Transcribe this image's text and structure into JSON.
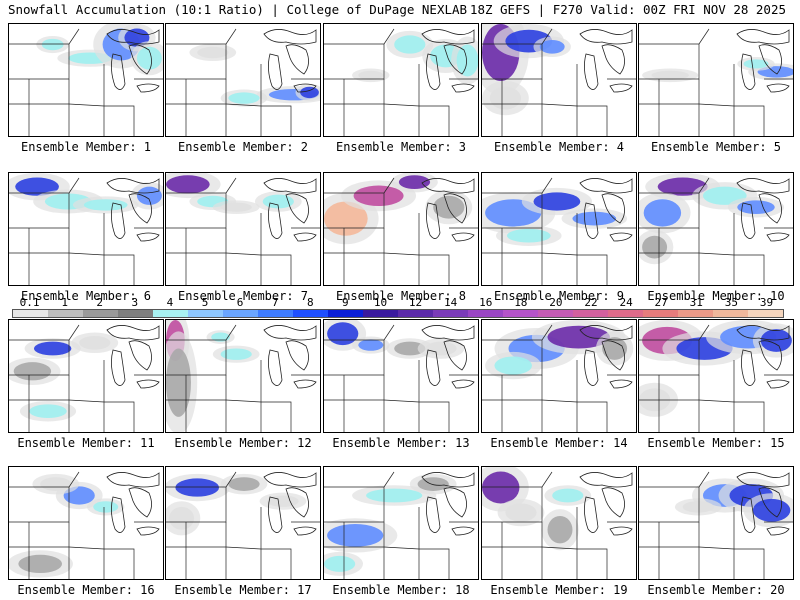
{
  "header": {
    "left": "Snowfall Accumulation (10:1 Ratio) | College of DuPage NEXLAB",
    "right": "18Z GEFS | F270 Valid: 00Z FRI NOV 28 2025"
  },
  "panels": [
    {
      "label": "Ensemble Member: 1",
      "blobs": [
        [
          0.28,
          0.18,
          0.07,
          0.05,
          3
        ],
        [
          0.52,
          0.3,
          0.14,
          0.05,
          3
        ],
        [
          0.72,
          0.18,
          0.12,
          0.14,
          4
        ],
        [
          0.82,
          0.12,
          0.08,
          0.08,
          5
        ],
        [
          0.9,
          0.3,
          0.08,
          0.1,
          3
        ]
      ]
    },
    {
      "label": "Ensemble Member: 2",
      "blobs": [
        [
          0.82,
          0.62,
          0.16,
          0.05,
          4
        ],
        [
          0.5,
          0.65,
          0.1,
          0.05,
          3
        ],
        [
          0.92,
          0.6,
          0.06,
          0.05,
          5
        ],
        [
          0.3,
          0.25,
          0.1,
          0.05,
          1
        ]
      ]
    },
    {
      "label": "Ensemble Member: 3",
      "blobs": [
        [
          0.55,
          0.18,
          0.1,
          0.08,
          3
        ],
        [
          0.78,
          0.28,
          0.1,
          0.1,
          3
        ],
        [
          0.92,
          0.32,
          0.07,
          0.14,
          3
        ],
        [
          0.3,
          0.45,
          0.08,
          0.04,
          1
        ]
      ]
    },
    {
      "label": "Ensemble Member: 4",
      "blobs": [
        [
          0.12,
          0.25,
          0.12,
          0.25,
          6
        ],
        [
          0.3,
          0.15,
          0.15,
          0.1,
          5
        ],
        [
          0.45,
          0.2,
          0.08,
          0.06,
          4
        ],
        [
          0.15,
          0.65,
          0.1,
          0.1,
          1
        ]
      ]
    },
    {
      "label": "Ensemble Member: 5",
      "blobs": [
        [
          0.88,
          0.42,
          0.12,
          0.05,
          4
        ],
        [
          0.75,
          0.35,
          0.08,
          0.04,
          3
        ],
        [
          0.2,
          0.45,
          0.12,
          0.04,
          1
        ]
      ]
    },
    {
      "label": "Ensemble Member: 6",
      "blobs": [
        [
          0.18,
          0.12,
          0.14,
          0.08,
          5
        ],
        [
          0.38,
          0.25,
          0.15,
          0.07,
          3
        ],
        [
          0.62,
          0.28,
          0.14,
          0.05,
          3
        ],
        [
          0.9,
          0.2,
          0.08,
          0.08,
          4
        ]
      ]
    },
    {
      "label": "Ensemble Member: 7",
      "blobs": [
        [
          0.14,
          0.1,
          0.14,
          0.08,
          6
        ],
        [
          0.3,
          0.25,
          0.1,
          0.05,
          3
        ],
        [
          0.72,
          0.25,
          0.1,
          0.06,
          3
        ],
        [
          0.45,
          0.3,
          0.1,
          0.04,
          1
        ]
      ]
    },
    {
      "label": "Ensemble Member: 8",
      "blobs": [
        [
          0.14,
          0.4,
          0.14,
          0.15,
          9
        ],
        [
          0.35,
          0.2,
          0.16,
          0.09,
          7
        ],
        [
          0.58,
          0.08,
          0.1,
          0.06,
          6
        ],
        [
          0.8,
          0.3,
          0.1,
          0.1,
          2
        ]
      ]
    },
    {
      "label": "Ensemble Member: 9",
      "blobs": [
        [
          0.2,
          0.35,
          0.18,
          0.12,
          4
        ],
        [
          0.48,
          0.25,
          0.15,
          0.08,
          5
        ],
        [
          0.72,
          0.4,
          0.14,
          0.06,
          4
        ],
        [
          0.3,
          0.55,
          0.14,
          0.06,
          3
        ]
      ]
    },
    {
      "label": "Ensemble Member: 10",
      "blobs": [
        [
          0.28,
          0.12,
          0.16,
          0.08,
          6
        ],
        [
          0.15,
          0.35,
          0.12,
          0.12,
          4
        ],
        [
          0.55,
          0.2,
          0.14,
          0.08,
          3
        ],
        [
          0.75,
          0.3,
          0.12,
          0.06,
          4
        ],
        [
          0.1,
          0.65,
          0.08,
          0.1,
          2
        ]
      ]
    },
    {
      "label": "Ensemble Member: 11",
      "blobs": [
        [
          0.28,
          0.25,
          0.12,
          0.06,
          5
        ],
        [
          0.15,
          0.45,
          0.12,
          0.08,
          2
        ],
        [
          0.25,
          0.8,
          0.12,
          0.06,
          3
        ],
        [
          0.55,
          0.2,
          0.1,
          0.06,
          1
        ]
      ]
    },
    {
      "label": "Ensemble Member: 12",
      "blobs": [
        [
          0.06,
          0.18,
          0.06,
          0.18,
          7
        ],
        [
          0.08,
          0.55,
          0.08,
          0.3,
          2
        ],
        [
          0.45,
          0.3,
          0.1,
          0.05,
          3
        ],
        [
          0.35,
          0.15,
          0.06,
          0.04,
          3
        ]
      ]
    },
    {
      "label": "Ensemble Member: 13",
      "blobs": [
        [
          0.12,
          0.12,
          0.1,
          0.1,
          5
        ],
        [
          0.3,
          0.22,
          0.08,
          0.05,
          4
        ],
        [
          0.55,
          0.25,
          0.1,
          0.06,
          2
        ],
        [
          0.75,
          0.25,
          0.1,
          0.06,
          1
        ]
      ]
    },
    {
      "label": "Ensemble Member: 14",
      "blobs": [
        [
          0.35,
          0.25,
          0.18,
          0.12,
          4
        ],
        [
          0.62,
          0.15,
          0.2,
          0.1,
          6
        ],
        [
          0.2,
          0.4,
          0.12,
          0.08,
          3
        ],
        [
          0.85,
          0.25,
          0.08,
          0.1,
          2
        ]
      ]
    },
    {
      "label": "Ensemble Member: 15",
      "blobs": [
        [
          0.18,
          0.18,
          0.16,
          0.12,
          7
        ],
        [
          0.42,
          0.25,
          0.18,
          0.1,
          5
        ],
        [
          0.7,
          0.15,
          0.18,
          0.1,
          4
        ],
        [
          0.88,
          0.18,
          0.1,
          0.1,
          5
        ],
        [
          0.1,
          0.7,
          0.1,
          0.1,
          1
        ]
      ]
    },
    {
      "label": "Ensemble Member: 16",
      "blobs": [
        [
          0.45,
          0.25,
          0.1,
          0.08,
          4
        ],
        [
          0.62,
          0.35,
          0.08,
          0.05,
          3
        ],
        [
          0.2,
          0.85,
          0.14,
          0.08,
          2
        ],
        [
          0.3,
          0.15,
          0.1,
          0.06,
          1
        ]
      ]
    },
    {
      "label": "Ensemble Member: 17",
      "blobs": [
        [
          0.2,
          0.18,
          0.14,
          0.08,
          5
        ],
        [
          0.1,
          0.45,
          0.08,
          0.1,
          1
        ],
        [
          0.5,
          0.15,
          0.1,
          0.06,
          2
        ],
        [
          0.75,
          0.3,
          0.1,
          0.05,
          1
        ]
      ]
    },
    {
      "label": "Ensemble Member: 18",
      "blobs": [
        [
          0.2,
          0.6,
          0.18,
          0.1,
          4
        ],
        [
          0.45,
          0.25,
          0.18,
          0.06,
          3
        ],
        [
          0.1,
          0.85,
          0.1,
          0.07,
          3
        ],
        [
          0.7,
          0.15,
          0.1,
          0.06,
          2
        ]
      ]
    },
    {
      "label": "Ensemble Member: 19",
      "blobs": [
        [
          0.12,
          0.18,
          0.12,
          0.14,
          6
        ],
        [
          0.55,
          0.25,
          0.1,
          0.06,
          3
        ],
        [
          0.5,
          0.55,
          0.08,
          0.12,
          2
        ],
        [
          0.25,
          0.4,
          0.1,
          0.08,
          1
        ]
      ]
    },
    {
      "label": "Ensemble Member: 20",
      "blobs": [
        [
          0.55,
          0.25,
          0.14,
          0.1,
          4
        ],
        [
          0.72,
          0.25,
          0.14,
          0.1,
          5
        ],
        [
          0.85,
          0.38,
          0.12,
          0.1,
          5
        ],
        [
          0.38,
          0.35,
          0.1,
          0.05,
          1
        ]
      ]
    }
  ],
  "colorscale": {
    "labels": [
      "0.1",
      "1",
      "2",
      "3",
      "4",
      "5",
      "6",
      "7",
      "8",
      "9",
      "10",
      "12",
      "14",
      "16",
      "18",
      "20",
      "22",
      "24",
      "27",
      "31",
      "35",
      "39"
    ],
    "colors": [
      "#e8e8e8",
      "#bdbdbd",
      "#9a9a9a",
      "#7f7f7f",
      "#a8f2f2",
      "#8ec7ff",
      "#6aa5ff",
      "#3f7cff",
      "#1f4fff",
      "#0a1fd8",
      "#3a1a9e",
      "#5b2aa8",
      "#7a3bb8",
      "#9a46c4",
      "#b453c9",
      "#c45bb4",
      "#d2609e",
      "#de6b8a",
      "#e67c7c",
      "#ec9a88",
      "#f0b89c",
      "#f6d6be"
    ]
  },
  "palette": {
    "gray_light": "#e0e0e0",
    "gray_mid": "#a9a9a9",
    "cyan": "#9ef0f0",
    "blue": "#5f8dff",
    "blue_dark": "#2b3fe0",
    "purple": "#6a2aa8",
    "magenta": "#c04da0",
    "pink": "#e27a8a",
    "peach": "#f4b89a"
  }
}
